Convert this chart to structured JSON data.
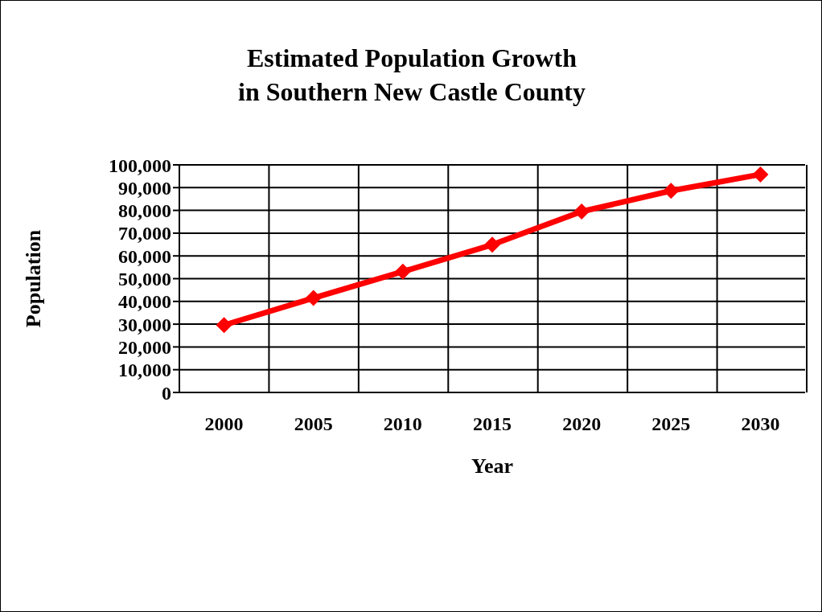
{
  "chart_data": {
    "type": "line",
    "title": "Estimated Population Growth\nin Southern New Castle County",
    "xlabel": "Year",
    "ylabel": "Population",
    "categories": [
      "2000",
      "2005",
      "2010",
      "2015",
      "2020",
      "2025",
      "2030"
    ],
    "series": [
      {
        "color": "#ff0000",
        "values": [
          29600,
          41500,
          53100,
          64900,
          79500,
          88600,
          95800
        ]
      }
    ],
    "ylim": [
      0,
      100000
    ],
    "yticks": [
      0,
      {
        "value": 10000,
        "label": "10,000"
      },
      {
        "value": 20000,
        "label": "20,000"
      },
      {
        "value": 30000,
        "label": "30,000"
      },
      {
        "value": 40000,
        "label": "40,000"
      },
      {
        "value": 50000,
        "label": "50,000"
      },
      {
        "value": 60000,
        "label": "60,000"
      },
      {
        "value": 70000,
        "label": "70,000"
      },
      {
        "value": 80000,
        "label": "80,000"
      },
      {
        "value": 90000,
        "label": "90,000"
      },
      {
        "value": 100000,
        "label": "100,000"
      }
    ],
    "grid": true,
    "marker": "diamond",
    "legend": false
  }
}
